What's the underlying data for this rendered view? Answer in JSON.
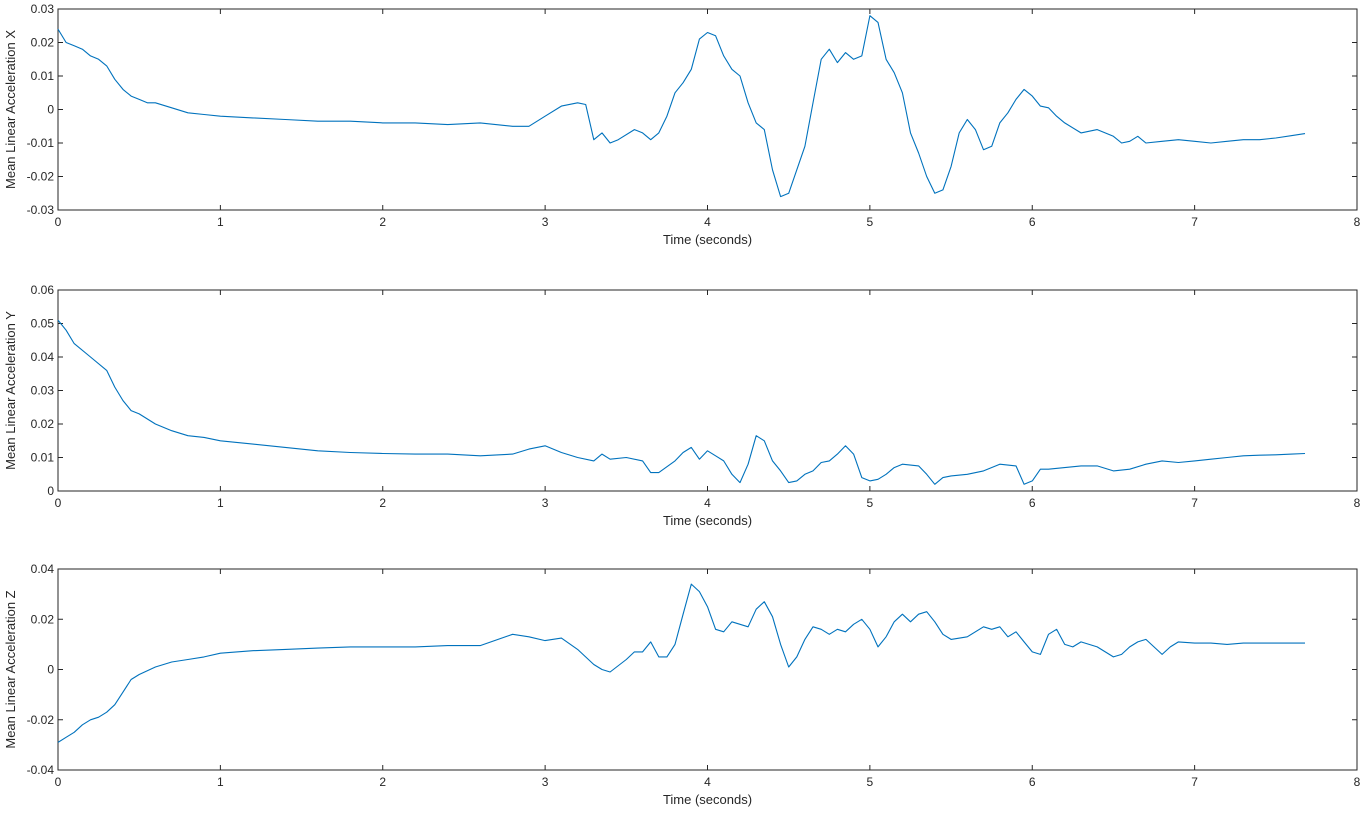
{
  "chart_data": [
    {
      "type": "line",
      "xlabel": "Time (seconds)",
      "ylabel": "Mean Linear Acceleration X",
      "xlim": [
        0,
        8
      ],
      "ylim": [
        -0.03,
        0.03
      ],
      "xticks": [
        0,
        1,
        2,
        3,
        4,
        5,
        6,
        7,
        8
      ],
      "xtick_labels": [
        "0",
        "1",
        "2",
        "3",
        "4",
        "5",
        "6",
        "7",
        "8"
      ],
      "yticks": [
        -0.03,
        -0.02,
        -0.01,
        0,
        0.01,
        0.02,
        0.03
      ],
      "ytick_labels": [
        "-0.03",
        "-0.02",
        "-0.01",
        "0",
        "0.01",
        "0.02",
        "0.03"
      ],
      "grid": false,
      "line_color": "#0072BD",
      "series": [
        {
          "x": [
            0,
            0.05,
            0.1,
            0.15,
            0.2,
            0.25,
            0.3,
            0.35,
            0.4,
            0.45,
            0.5,
            0.55,
            0.6,
            0.7,
            0.8,
            0.9,
            1.0,
            1.2,
            1.4,
            1.6,
            1.8,
            2.0,
            2.2,
            2.4,
            2.6,
            2.8,
            2.9,
            3.0,
            3.1,
            3.2,
            3.25,
            3.3,
            3.35,
            3.4,
            3.45,
            3.55,
            3.6,
            3.65,
            3.7,
            3.75,
            3.8,
            3.85,
            3.9,
            3.95,
            4.0,
            4.05,
            4.1,
            4.15,
            4.2,
            4.25,
            4.3,
            4.35,
            4.4,
            4.45,
            4.5,
            4.55,
            4.6,
            4.65,
            4.7,
            4.75,
            4.8,
            4.85,
            4.9,
            4.95,
            5.0,
            5.05,
            5.1,
            5.15,
            5.2,
            5.25,
            5.3,
            5.35,
            5.4,
            5.45,
            5.5,
            5.55,
            5.6,
            5.65,
            5.7,
            5.75,
            5.8,
            5.85,
            5.9,
            5.95,
            6.0,
            6.05,
            6.1,
            6.15,
            6.2,
            6.3,
            6.4,
            6.5,
            6.55,
            6.6,
            6.65,
            6.7,
            6.8,
            6.9,
            7.0,
            7.1,
            7.2,
            7.3,
            7.4,
            7.5,
            7.6,
            7.68
          ],
          "y": [
            0.024,
            0.02,
            0.019,
            0.018,
            0.016,
            0.015,
            0.013,
            0.009,
            0.006,
            0.004,
            0.003,
            0.002,
            0.002,
            0.0005,
            -0.001,
            -0.0015,
            -0.002,
            -0.0025,
            -0.003,
            -0.0035,
            -0.0035,
            -0.004,
            -0.004,
            -0.0045,
            -0.004,
            -0.005,
            -0.005,
            -0.002,
            0.001,
            0.002,
            0.0015,
            -0.009,
            -0.007,
            -0.01,
            -0.009,
            -0.006,
            -0.007,
            -0.009,
            -0.007,
            -0.002,
            0.005,
            0.008,
            0.012,
            0.021,
            0.023,
            0.022,
            0.016,
            0.012,
            0.01,
            0.002,
            -0.004,
            -0.006,
            -0.018,
            -0.026,
            -0.025,
            -0.018,
            -0.011,
            0.002,
            0.015,
            0.018,
            0.014,
            0.017,
            0.015,
            0.016,
            0.028,
            0.026,
            0.015,
            0.011,
            0.005,
            -0.007,
            -0.013,
            -0.02,
            -0.025,
            -0.024,
            -0.017,
            -0.007,
            -0.003,
            -0.006,
            -0.012,
            -0.011,
            -0.004,
            -0.001,
            0.003,
            0.006,
            0.004,
            0.001,
            0.0005,
            -0.002,
            -0.004,
            -0.007,
            -0.006,
            -0.008,
            -0.01,
            -0.0095,
            -0.008,
            -0.01,
            -0.0095,
            -0.009,
            -0.0095,
            -0.01,
            -0.0095,
            -0.009,
            -0.009,
            -0.0085,
            -0.0078,
            -0.0072
          ]
        }
      ]
    },
    {
      "type": "line",
      "xlabel": "Time (seconds)",
      "ylabel": "Mean Linear Acceleration Y",
      "xlim": [
        0,
        8
      ],
      "ylim": [
        0,
        0.06
      ],
      "xticks": [
        0,
        1,
        2,
        3,
        4,
        5,
        6,
        7,
        8
      ],
      "xtick_labels": [
        "0",
        "1",
        "2",
        "3",
        "4",
        "5",
        "6",
        "7",
        "8"
      ],
      "yticks": [
        0,
        0.01,
        0.02,
        0.03,
        0.04,
        0.05,
        0.06
      ],
      "ytick_labels": [
        "0",
        "0.01",
        "0.02",
        "0.03",
        "0.04",
        "0.05",
        "0.06"
      ],
      "grid": false,
      "line_color": "#0072BD",
      "series": [
        {
          "x": [
            0,
            0.05,
            0.1,
            0.2,
            0.3,
            0.35,
            0.4,
            0.45,
            0.5,
            0.6,
            0.7,
            0.8,
            0.9,
            1.0,
            1.2,
            1.4,
            1.6,
            1.8,
            2.0,
            2.2,
            2.4,
            2.6,
            2.8,
            2.9,
            3.0,
            3.1,
            3.2,
            3.3,
            3.35,
            3.4,
            3.5,
            3.6,
            3.65,
            3.7,
            3.8,
            3.85,
            3.9,
            3.95,
            4.0,
            4.05,
            4.1,
            4.15,
            4.2,
            4.25,
            4.3,
            4.35,
            4.4,
            4.45,
            4.5,
            4.55,
            4.6,
            4.65,
            4.7,
            4.75,
            4.8,
            4.85,
            4.9,
            4.95,
            5.0,
            5.05,
            5.1,
            5.15,
            5.2,
            5.3,
            5.35,
            5.4,
            5.45,
            5.5,
            5.6,
            5.7,
            5.8,
            5.9,
            5.95,
            6.0,
            6.05,
            6.1,
            6.2,
            6.3,
            6.4,
            6.5,
            6.6,
            6.7,
            6.8,
            6.9,
            7.0,
            7.1,
            7.2,
            7.3,
            7.4,
            7.5,
            7.6,
            7.68
          ],
          "y": [
            0.051,
            0.048,
            0.044,
            0.04,
            0.036,
            0.031,
            0.027,
            0.024,
            0.023,
            0.02,
            0.018,
            0.0165,
            0.016,
            0.015,
            0.014,
            0.013,
            0.012,
            0.0115,
            0.0112,
            0.011,
            0.011,
            0.0105,
            0.011,
            0.0125,
            0.0135,
            0.0115,
            0.01,
            0.009,
            0.011,
            0.0095,
            0.01,
            0.009,
            0.0055,
            0.0055,
            0.009,
            0.0115,
            0.013,
            0.0095,
            0.012,
            0.0105,
            0.009,
            0.005,
            0.0025,
            0.008,
            0.0165,
            0.015,
            0.009,
            0.006,
            0.0025,
            0.003,
            0.005,
            0.006,
            0.0085,
            0.009,
            0.011,
            0.0135,
            0.011,
            0.004,
            0.003,
            0.0035,
            0.005,
            0.007,
            0.008,
            0.0075,
            0.005,
            0.002,
            0.004,
            0.0045,
            0.005,
            0.006,
            0.008,
            0.0075,
            0.002,
            0.003,
            0.0065,
            0.0065,
            0.007,
            0.0075,
            0.0075,
            0.006,
            0.0065,
            0.008,
            0.009,
            0.0085,
            0.009,
            0.0095,
            0.01,
            0.0105,
            0.0107,
            0.0108,
            0.011,
            0.0112
          ]
        }
      ]
    },
    {
      "type": "line",
      "xlabel": "Time (seconds)",
      "ylabel": "Mean Linear Acceleration Z",
      "xlim": [
        0,
        8
      ],
      "ylim": [
        -0.04,
        0.04
      ],
      "xticks": [
        0,
        1,
        2,
        3,
        4,
        5,
        6,
        7,
        8
      ],
      "xtick_labels": [
        "0",
        "1",
        "2",
        "3",
        "4",
        "5",
        "6",
        "7",
        "8"
      ],
      "yticks": [
        -0.04,
        -0.02,
        0,
        0.02,
        0.04
      ],
      "ytick_labels": [
        "-0.04",
        "-0.02",
        "0",
        "0.02",
        "0.04"
      ],
      "grid": false,
      "line_color": "#0072BD",
      "series": [
        {
          "x": [
            0,
            0.05,
            0.1,
            0.15,
            0.2,
            0.25,
            0.3,
            0.35,
            0.4,
            0.45,
            0.5,
            0.6,
            0.7,
            0.8,
            0.9,
            1.0,
            1.2,
            1.4,
            1.6,
            1.8,
            2.0,
            2.2,
            2.4,
            2.6,
            2.8,
            2.9,
            3.0,
            3.1,
            3.2,
            3.3,
            3.35,
            3.4,
            3.5,
            3.55,
            3.6,
            3.65,
            3.7,
            3.75,
            3.8,
            3.85,
            3.9,
            3.95,
            4.0,
            4.05,
            4.1,
            4.15,
            4.2,
            4.25,
            4.3,
            4.35,
            4.4,
            4.45,
            4.5,
            4.55,
            4.6,
            4.65,
            4.7,
            4.75,
            4.8,
            4.85,
            4.9,
            4.95,
            5.0,
            5.05,
            5.1,
            5.15,
            5.2,
            5.25,
            5.3,
            5.35,
            5.4,
            5.45,
            5.5,
            5.6,
            5.7,
            5.75,
            5.8,
            5.85,
            5.9,
            5.95,
            6.0,
            6.05,
            6.1,
            6.15,
            6.2,
            6.25,
            6.3,
            6.4,
            6.5,
            6.55,
            6.6,
            6.65,
            6.7,
            6.75,
            6.8,
            6.85,
            6.9,
            7.0,
            7.1,
            7.2,
            7.3,
            7.4,
            7.5,
            7.6,
            7.68
          ],
          "y": [
            -0.029,
            -0.027,
            -0.025,
            -0.022,
            -0.02,
            -0.019,
            -0.017,
            -0.014,
            -0.009,
            -0.004,
            -0.002,
            0.001,
            0.003,
            0.004,
            0.005,
            0.0065,
            0.0075,
            0.008,
            0.0085,
            0.009,
            0.009,
            0.009,
            0.0095,
            0.0095,
            0.014,
            0.013,
            0.0115,
            0.0125,
            0.008,
            0.002,
            0.0,
            -0.001,
            0.004,
            0.007,
            0.007,
            0.011,
            0.005,
            0.005,
            0.01,
            0.022,
            0.034,
            0.031,
            0.025,
            0.016,
            0.015,
            0.019,
            0.018,
            0.017,
            0.024,
            0.027,
            0.021,
            0.01,
            0.001,
            0.005,
            0.012,
            0.017,
            0.016,
            0.014,
            0.016,
            0.015,
            0.018,
            0.02,
            0.016,
            0.009,
            0.013,
            0.019,
            0.022,
            0.019,
            0.022,
            0.023,
            0.019,
            0.014,
            0.012,
            0.013,
            0.017,
            0.016,
            0.017,
            0.013,
            0.015,
            0.011,
            0.007,
            0.006,
            0.014,
            0.016,
            0.01,
            0.009,
            0.011,
            0.009,
            0.005,
            0.006,
            0.009,
            0.011,
            0.012,
            0.009,
            0.006,
            0.009,
            0.011,
            0.0105,
            0.0105,
            0.01,
            0.0105,
            0.0105,
            0.0105,
            0.0105,
            0.0105
          ]
        }
      ]
    }
  ]
}
